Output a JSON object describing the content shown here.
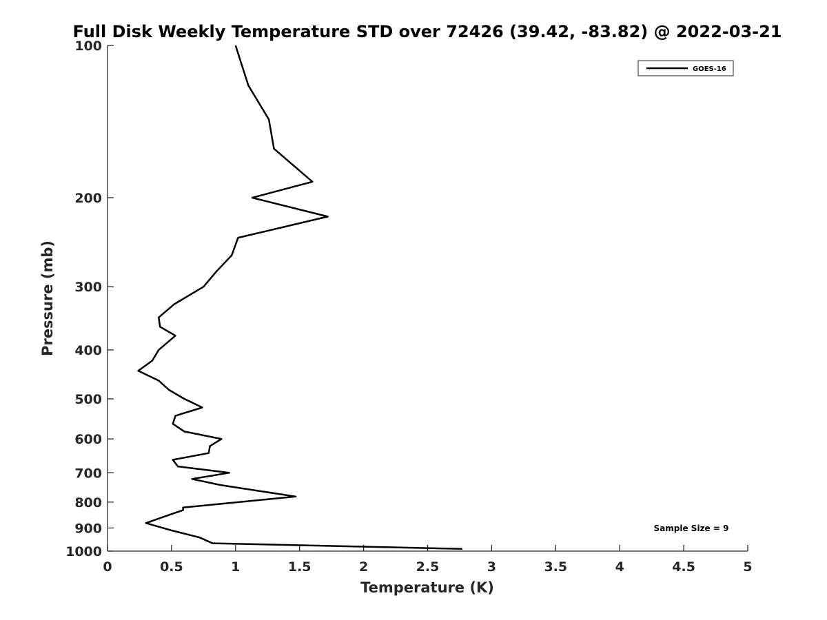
{
  "chart_data": {
    "type": "line",
    "title": "Full Disk Weekly Temperature STD over 72426 (39.42, -83.82) @ 2022-03-21",
    "xlabel": "Temperature (K)",
    "ylabel": "Pressure (mb)",
    "xlim": [
      0,
      5
    ],
    "ylim": [
      100,
      1000
    ],
    "y_scale": "log",
    "y_reversed": true,
    "x_ticks": [
      "0",
      "0.5",
      "1",
      "1.5",
      "2",
      "2.5",
      "3",
      "3.5",
      "4",
      "4.5",
      "5"
    ],
    "y_ticks": [
      "100",
      "200",
      "300",
      "400",
      "500",
      "600",
      "700",
      "800",
      "900",
      "1000"
    ],
    "grid": false,
    "legend_position": "top-right",
    "series": [
      {
        "name": "GOES-16",
        "color": "#000000",
        "points": [
          [
            1.0,
            100
          ],
          [
            1.1,
            120
          ],
          [
            1.26,
            140
          ],
          [
            1.3,
            160
          ],
          [
            1.6,
            186
          ],
          [
            1.13,
            200
          ],
          [
            1.72,
            218
          ],
          [
            1.02,
            240
          ],
          [
            0.97,
            260
          ],
          [
            0.85,
            280
          ],
          [
            0.75,
            300
          ],
          [
            0.52,
            325
          ],
          [
            0.4,
            345
          ],
          [
            0.41,
            360
          ],
          [
            0.53,
            375
          ],
          [
            0.4,
            400
          ],
          [
            0.35,
            420
          ],
          [
            0.24,
            440
          ],
          [
            0.4,
            460
          ],
          [
            0.48,
            480
          ],
          [
            0.6,
            500
          ],
          [
            0.74,
            520
          ],
          [
            0.53,
            540
          ],
          [
            0.51,
            560
          ],
          [
            0.6,
            580
          ],
          [
            0.89,
            600
          ],
          [
            0.8,
            620
          ],
          [
            0.79,
            640
          ],
          [
            0.51,
            660
          ],
          [
            0.55,
            680
          ],
          [
            0.95,
            700
          ],
          [
            0.66,
            720
          ],
          [
            0.88,
            740
          ],
          [
            1.47,
            780
          ],
          [
            0.59,
            820
          ],
          [
            0.59,
            830
          ],
          [
            0.47,
            850
          ],
          [
            0.3,
            880
          ],
          [
            0.5,
            910
          ],
          [
            0.72,
            940
          ],
          [
            0.82,
            965
          ],
          [
            2.77,
            990
          ]
        ]
      }
    ],
    "annotations": [
      "Sample Size = 9"
    ]
  }
}
